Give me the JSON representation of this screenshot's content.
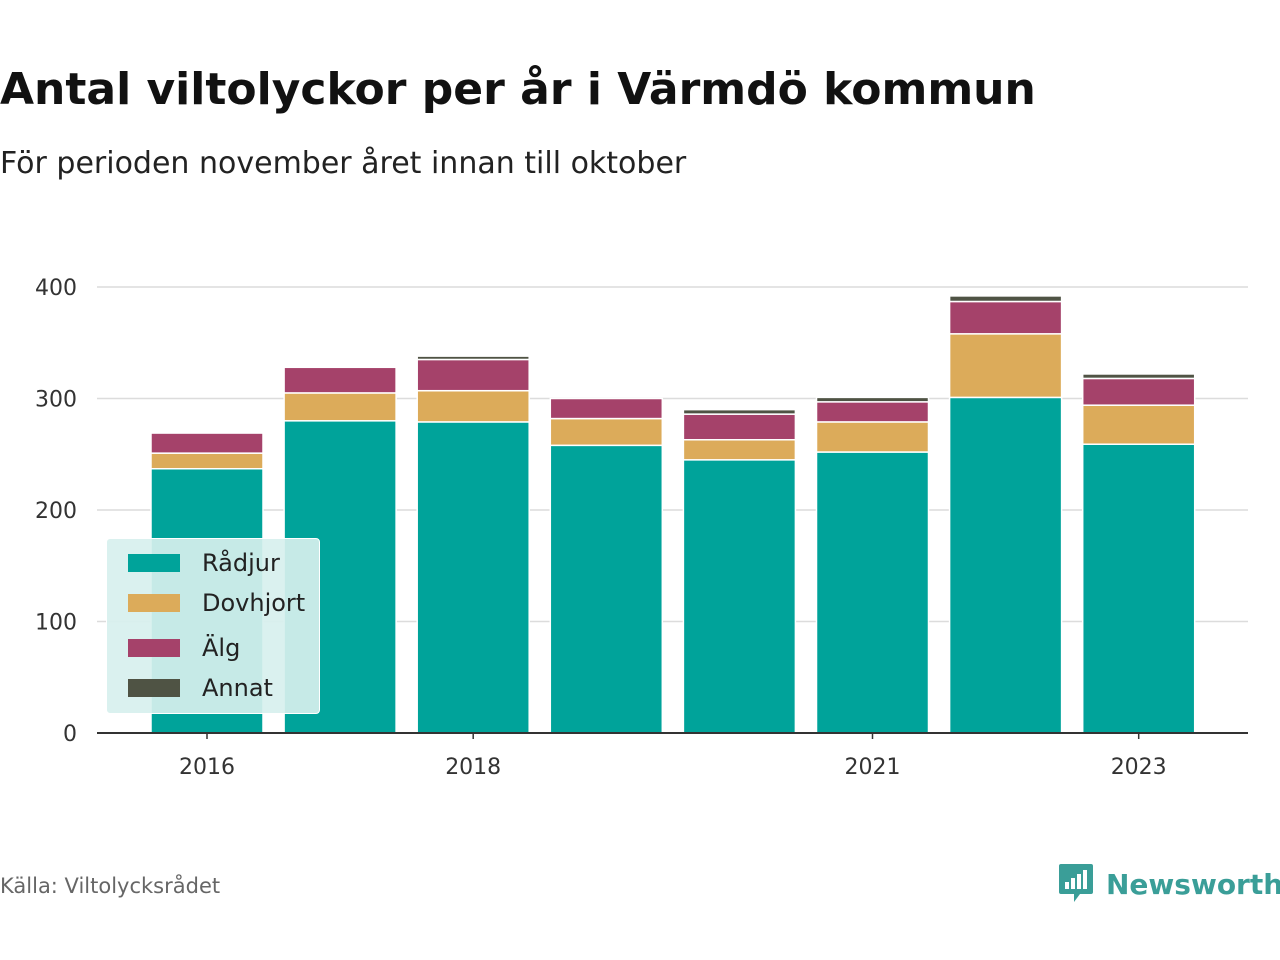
{
  "header": {
    "title": "Antal viltolyckor per år i Värmdö kommun",
    "subtitle": "För perioden november året innan till oktober"
  },
  "footer": {
    "source": "Källa: Viltolycksrådet",
    "brand": "Newsworthy"
  },
  "colors": {
    "radjur": "#00a39a",
    "dovhjort": "#dcab5a",
    "alg": "#a5426a",
    "annat": "#4f5344",
    "legend_bg": "#d7f0ee",
    "brand": "#3a9e98"
  },
  "chart_data": {
    "type": "bar",
    "stacked": true,
    "categories": [
      "2016",
      "2017",
      "2018",
      "2019",
      "2020",
      "2021",
      "2022",
      "2023"
    ],
    "x_tick_labels": [
      "2016",
      "",
      "2018",
      "",
      "",
      "2021",
      "",
      "2023"
    ],
    "y_ticks": [
      "0",
      "100",
      "200",
      "300",
      "400"
    ],
    "ylim": [
      0,
      400
    ],
    "grid": true,
    "legend_position": "bottom-left",
    "series": [
      {
        "name": "Rådjur",
        "color": "#00a39a",
        "values": [
          237,
          280,
          279,
          258,
          245,
          252,
          301,
          259
        ]
      },
      {
        "name": "Dovhjort",
        "color": "#dcab5a",
        "values": [
          14,
          25,
          28,
          24,
          18,
          27,
          57,
          35
        ]
      },
      {
        "name": "Älg",
        "color": "#a5426a",
        "values": [
          18,
          23,
          28,
          18,
          23,
          18,
          29,
          24
        ]
      },
      {
        "name": "Annat",
        "color": "#4f5344",
        "values": [
          0,
          1,
          3,
          0,
          4,
          4,
          5,
          4
        ]
      }
    ]
  }
}
